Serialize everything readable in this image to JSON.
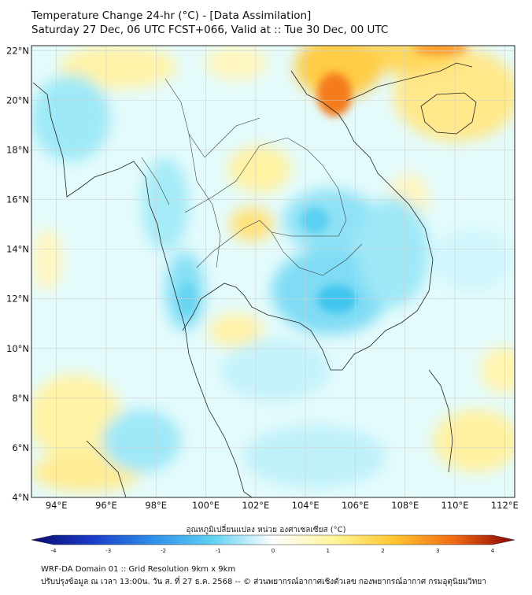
{
  "title": {
    "line1": "Temperature Change 24-hr (°C) - [Data Assimilation]",
    "line2": "Saturday 27 Dec, 06 UTC FCST+066, Valid at :: Tue 30 Dec, 00 UTC"
  },
  "map": {
    "lat_ticks": [
      "22°N",
      "20°N",
      "18°N",
      "16°N",
      "14°N",
      "12°N",
      "10°N",
      "8°N",
      "6°N",
      "4°N"
    ],
    "lon_ticks": [
      "94°E",
      "96°E",
      "98°E",
      "100°E",
      "102°E",
      "104°E",
      "106°E",
      "108°E",
      "110°E",
      "112°E"
    ],
    "lat_range": [
      4,
      22.2
    ],
    "lon_range": [
      93,
      112.4
    ]
  },
  "colorbar": {
    "label": "อุณหภูมิเปลี่ยนแปลง หน่วย องศาเซลเซียส (°C)",
    "ticks": [
      "-4",
      "-3",
      "-2",
      "-1",
      "0",
      "1",
      "2",
      "3",
      "4"
    ],
    "min": -4,
    "max": 4,
    "colors": [
      "#0a0a6e",
      "#1a3cc8",
      "#2e8ee8",
      "#5fd2f2",
      "#ffffff",
      "#fff59a",
      "#ffc62e",
      "#f06a14",
      "#8a0000"
    ]
  },
  "footer": {
    "line1": "WRF-DA Domain 01 :: Grid Resolution 9km x 9km",
    "line2": "ปรับปรุงข้อมูล ณ เวลา 13:00น. วัน ส. ที่ 27 ธ.ค. 2568 -- © ส่วนพยากรณ์อากาศเชิงตัวเลข กองพยากรณ์อากาศ กรมอุตุนิยมวิทยา"
  }
}
